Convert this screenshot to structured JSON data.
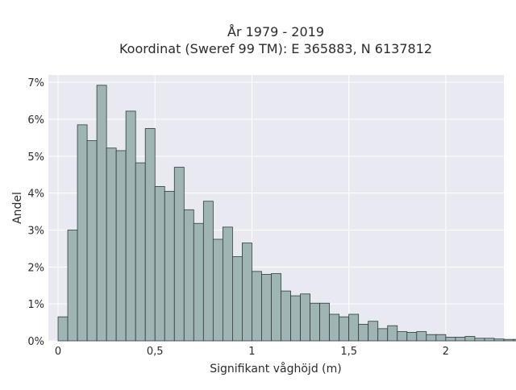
{
  "chart_data": {
    "type": "bar",
    "subtype": "histogram",
    "title_line1": "År 1979 - 2019",
    "title_line2": "Koordinat (Sweref 99 TM): E 365883, N 6137812",
    "xlabel": "Signifikant våghöjd (m)",
    "ylabel": "Andel",
    "xlim": [
      -0.05,
      2.3
    ],
    "ylim": [
      0,
      7.2
    ],
    "xticks": [
      0,
      0.5,
      1,
      1.5,
      2
    ],
    "xtick_labels": [
      "0",
      "0,5",
      "1",
      "1,5",
      "2"
    ],
    "yticks": [
      0,
      1,
      2,
      3,
      4,
      5,
      6,
      7
    ],
    "ytick_labels": [
      "0%",
      "1%",
      "2%",
      "3%",
      "4%",
      "5%",
      "6%",
      "7%"
    ],
    "bin_start": 0.0,
    "bin_width": 0.05,
    "values": [
      0.65,
      3.0,
      5.85,
      5.42,
      6.92,
      5.22,
      5.15,
      6.22,
      4.82,
      5.75,
      4.18,
      4.05,
      4.7,
      3.55,
      3.18,
      3.78,
      2.75,
      3.08,
      2.28,
      2.65,
      1.88,
      1.8,
      1.82,
      1.35,
      1.22,
      1.27,
      1.02,
      1.02,
      0.72,
      0.65,
      0.72,
      0.45,
      0.53,
      0.33,
      0.41,
      0.25,
      0.23,
      0.25,
      0.17,
      0.17,
      0.1,
      0.1,
      0.12,
      0.07,
      0.07,
      0.05,
      0.04,
      0.04,
      0.02,
      0.02
    ],
    "grid": true,
    "colors": {
      "bar_fill": "#9fb5b5",
      "bar_edge": "#2f3b3b",
      "plot_bg": "#e9e9f1",
      "grid": "#ffffff"
    }
  }
}
